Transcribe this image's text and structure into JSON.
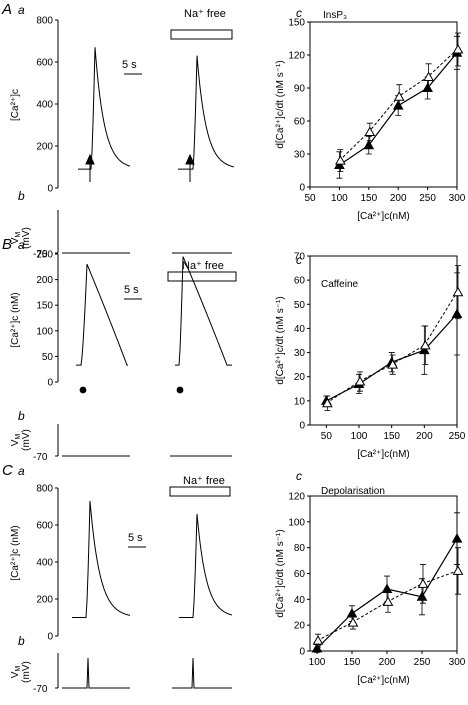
{
  "panels": {
    "A": {
      "letter": "A",
      "sub_a": "a",
      "sub_b": "b",
      "sub_c": "c",
      "ylabel": "[Ca²⁺]c",
      "vlabel_top": "V",
      "vlabel_sub": "M",
      "vunit": "(mV)",
      "scalebar": "5 s",
      "na_free": "Na⁺ free",
      "plot_label": "InsP₃",
      "vm_tick": "-70"
    },
    "B": {
      "letter": "B",
      "sub_a": "a",
      "sub_b": "b",
      "sub_c": "c",
      "ylabel": "[Ca²⁺]c (nM)",
      "vlabel_top": "V",
      "vlabel_sub": "M",
      "vunit": "(mV)",
      "scalebar": "5 s",
      "na_free": "Na⁺ free",
      "plot_label": "Caffeine",
      "vm_tick": "-70"
    },
    "C": {
      "letter": "C",
      "sub_a": "a",
      "sub_b": "b",
      "sub_c": "c",
      "ylabel": "[Ca²⁺]c (nM)",
      "vlabel_top": "V",
      "vlabel_sub": "M",
      "vunit": "(mV)",
      "scalebar": "5 s",
      "na_free": "Na⁺ free",
      "plot_label": "Depolarisation",
      "vm_tick": "-70"
    }
  },
  "chart_data": [
    {
      "type": "line",
      "panel": "A-a-control",
      "ylabel": "[Ca²⁺]c",
      "ylim": [
        0,
        800
      ],
      "yticks": [
        0,
        200,
        400,
        600,
        800
      ],
      "peak": 670,
      "baseline": 90,
      "stimulus": "arrow"
    },
    {
      "type": "line",
      "panel": "A-a-Na-free",
      "ylim": [
        0,
        800
      ],
      "peak": 630,
      "baseline": 90,
      "stimulus": "arrow"
    },
    {
      "type": "line",
      "panel": "A-c",
      "title": "InsP₃",
      "xlabel": "[Ca²⁺]c(nM)",
      "ylabel": "d[Ca²⁺]c/dt (nM s⁻¹)",
      "xlim": [
        50,
        300
      ],
      "ylim": [
        0,
        150
      ],
      "xticks": [
        50,
        100,
        150,
        200,
        250,
        300
      ],
      "yticks": [
        0,
        30,
        60,
        90,
        120,
        150
      ],
      "x": [
        100,
        150,
        200,
        250,
        300
      ],
      "series": [
        {
          "marker": "filled-triangle",
          "line": "solid",
          "values": [
            20,
            38,
            74,
            90,
            122
          ],
          "errors": [
            12,
            8,
            9,
            10,
            15
          ]
        },
        {
          "marker": "open-triangle",
          "line": "dashed",
          "values": [
            24,
            50,
            82,
            100,
            125
          ],
          "errors": [
            10,
            8,
            11,
            12,
            15
          ]
        }
      ]
    },
    {
      "type": "line",
      "panel": "B-a-control",
      "ylabel": "[Ca²⁺]c (nM)",
      "ylim": [
        0,
        250
      ],
      "yticks": [
        0,
        50,
        100,
        150,
        200,
        250
      ],
      "peak": 230,
      "baseline": 33,
      "stimulus": "dot"
    },
    {
      "type": "line",
      "panel": "B-a-Na-free",
      "ylim": [
        0,
        250
      ],
      "peak": 245,
      "baseline": 33,
      "stimulus": "dot"
    },
    {
      "type": "line",
      "panel": "B-c",
      "title": "Caffeine",
      "xlabel": "[Ca²⁺]c(nM)",
      "ylabel": "d[Ca²⁺]c/dt (nM s⁻¹)",
      "xlim": [
        25,
        250
      ],
      "ylim": [
        0,
        70
      ],
      "xticks": [
        50,
        100,
        150,
        200,
        250
      ],
      "yticks": [
        0,
        10,
        20,
        30,
        40,
        50,
        60,
        70
      ],
      "x": [
        50,
        100,
        150,
        200,
        250
      ],
      "series": [
        {
          "marker": "filled-triangle",
          "line": "solid",
          "values": [
            10,
            17,
            26,
            31,
            46
          ],
          "errors": [
            2,
            4,
            4,
            10,
            17
          ]
        },
        {
          "marker": "open-triangle",
          "line": "dashed",
          "values": [
            9,
            18,
            25,
            33,
            55
          ],
          "errors": [
            3,
            4,
            4,
            8,
            11
          ]
        }
      ]
    },
    {
      "type": "line",
      "panel": "C-a-control",
      "ylabel": "[Ca²⁺]c (nM)",
      "ylim": [
        0,
        800
      ],
      "yticks": [
        0,
        200,
        400,
        600,
        800
      ],
      "peak": 730,
      "baseline": 100
    },
    {
      "type": "line",
      "panel": "C-a-Na-free",
      "ylim": [
        0,
        800
      ],
      "peak": 660,
      "baseline": 100
    },
    {
      "type": "line",
      "panel": "C-c",
      "title": "Depolarisation",
      "xlabel": "[Ca²⁺]c(nM)",
      "ylabel": "d[Ca²⁺]c/dt (nM s⁻¹)",
      "xlim": [
        90,
        300
      ],
      "ylim": [
        0,
        120
      ],
      "xticks": [
        100,
        150,
        200,
        250,
        300
      ],
      "yticks": [
        0,
        20,
        40,
        60,
        80,
        100,
        120
      ],
      "x": [
        100,
        150,
        200,
        250,
        300
      ],
      "series": [
        {
          "marker": "filled-triangle",
          "line": "solid",
          "values": [
            2,
            29,
            48,
            42,
            87
          ],
          "errors": [
            3,
            6,
            10,
            14,
            20
          ]
        },
        {
          "marker": "open-triangle",
          "line": "dashed",
          "values": [
            8,
            22,
            38,
            52,
            62
          ],
          "errors": [
            5,
            5,
            8,
            15,
            18
          ]
        }
      ]
    }
  ]
}
